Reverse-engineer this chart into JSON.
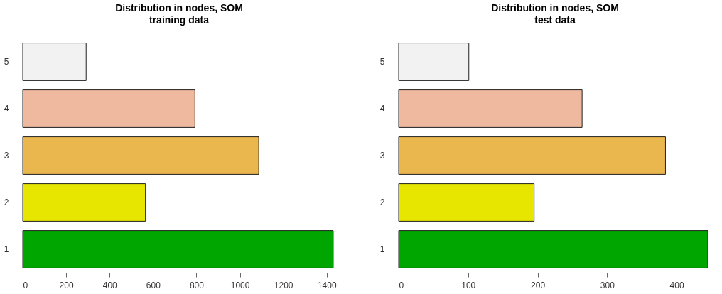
{
  "chart_data": [
    {
      "type": "bar",
      "orientation": "horizontal",
      "title": "Distribution in nodes, SOM",
      "subtitle": "training data",
      "categories": [
        "5",
        "4",
        "3",
        "2",
        "1"
      ],
      "values": [
        292,
        793,
        1087,
        565,
        1430
      ],
      "colors": [
        "#f2f2f2",
        "#eeb99f",
        "#eab64e",
        "#e6e600",
        "#00a600"
      ],
      "xlim": [
        0,
        1440
      ],
      "xticks": [
        0,
        200,
        400,
        600,
        800,
        1000,
        1200,
        1400
      ],
      "grid": false
    },
    {
      "type": "bar",
      "orientation": "horizontal",
      "title": "Distribution in nodes, SOM",
      "subtitle": "test data",
      "categories": [
        "5",
        "4",
        "3",
        "2",
        "1"
      ],
      "values": [
        101,
        264,
        384,
        195,
        445
      ],
      "colors": [
        "#f2f2f2",
        "#eeb99f",
        "#eab64e",
        "#e6e600",
        "#00a600"
      ],
      "xlim": [
        0,
        450
      ],
      "xticks": [
        0,
        100,
        200,
        300,
        400
      ],
      "grid": false
    }
  ]
}
